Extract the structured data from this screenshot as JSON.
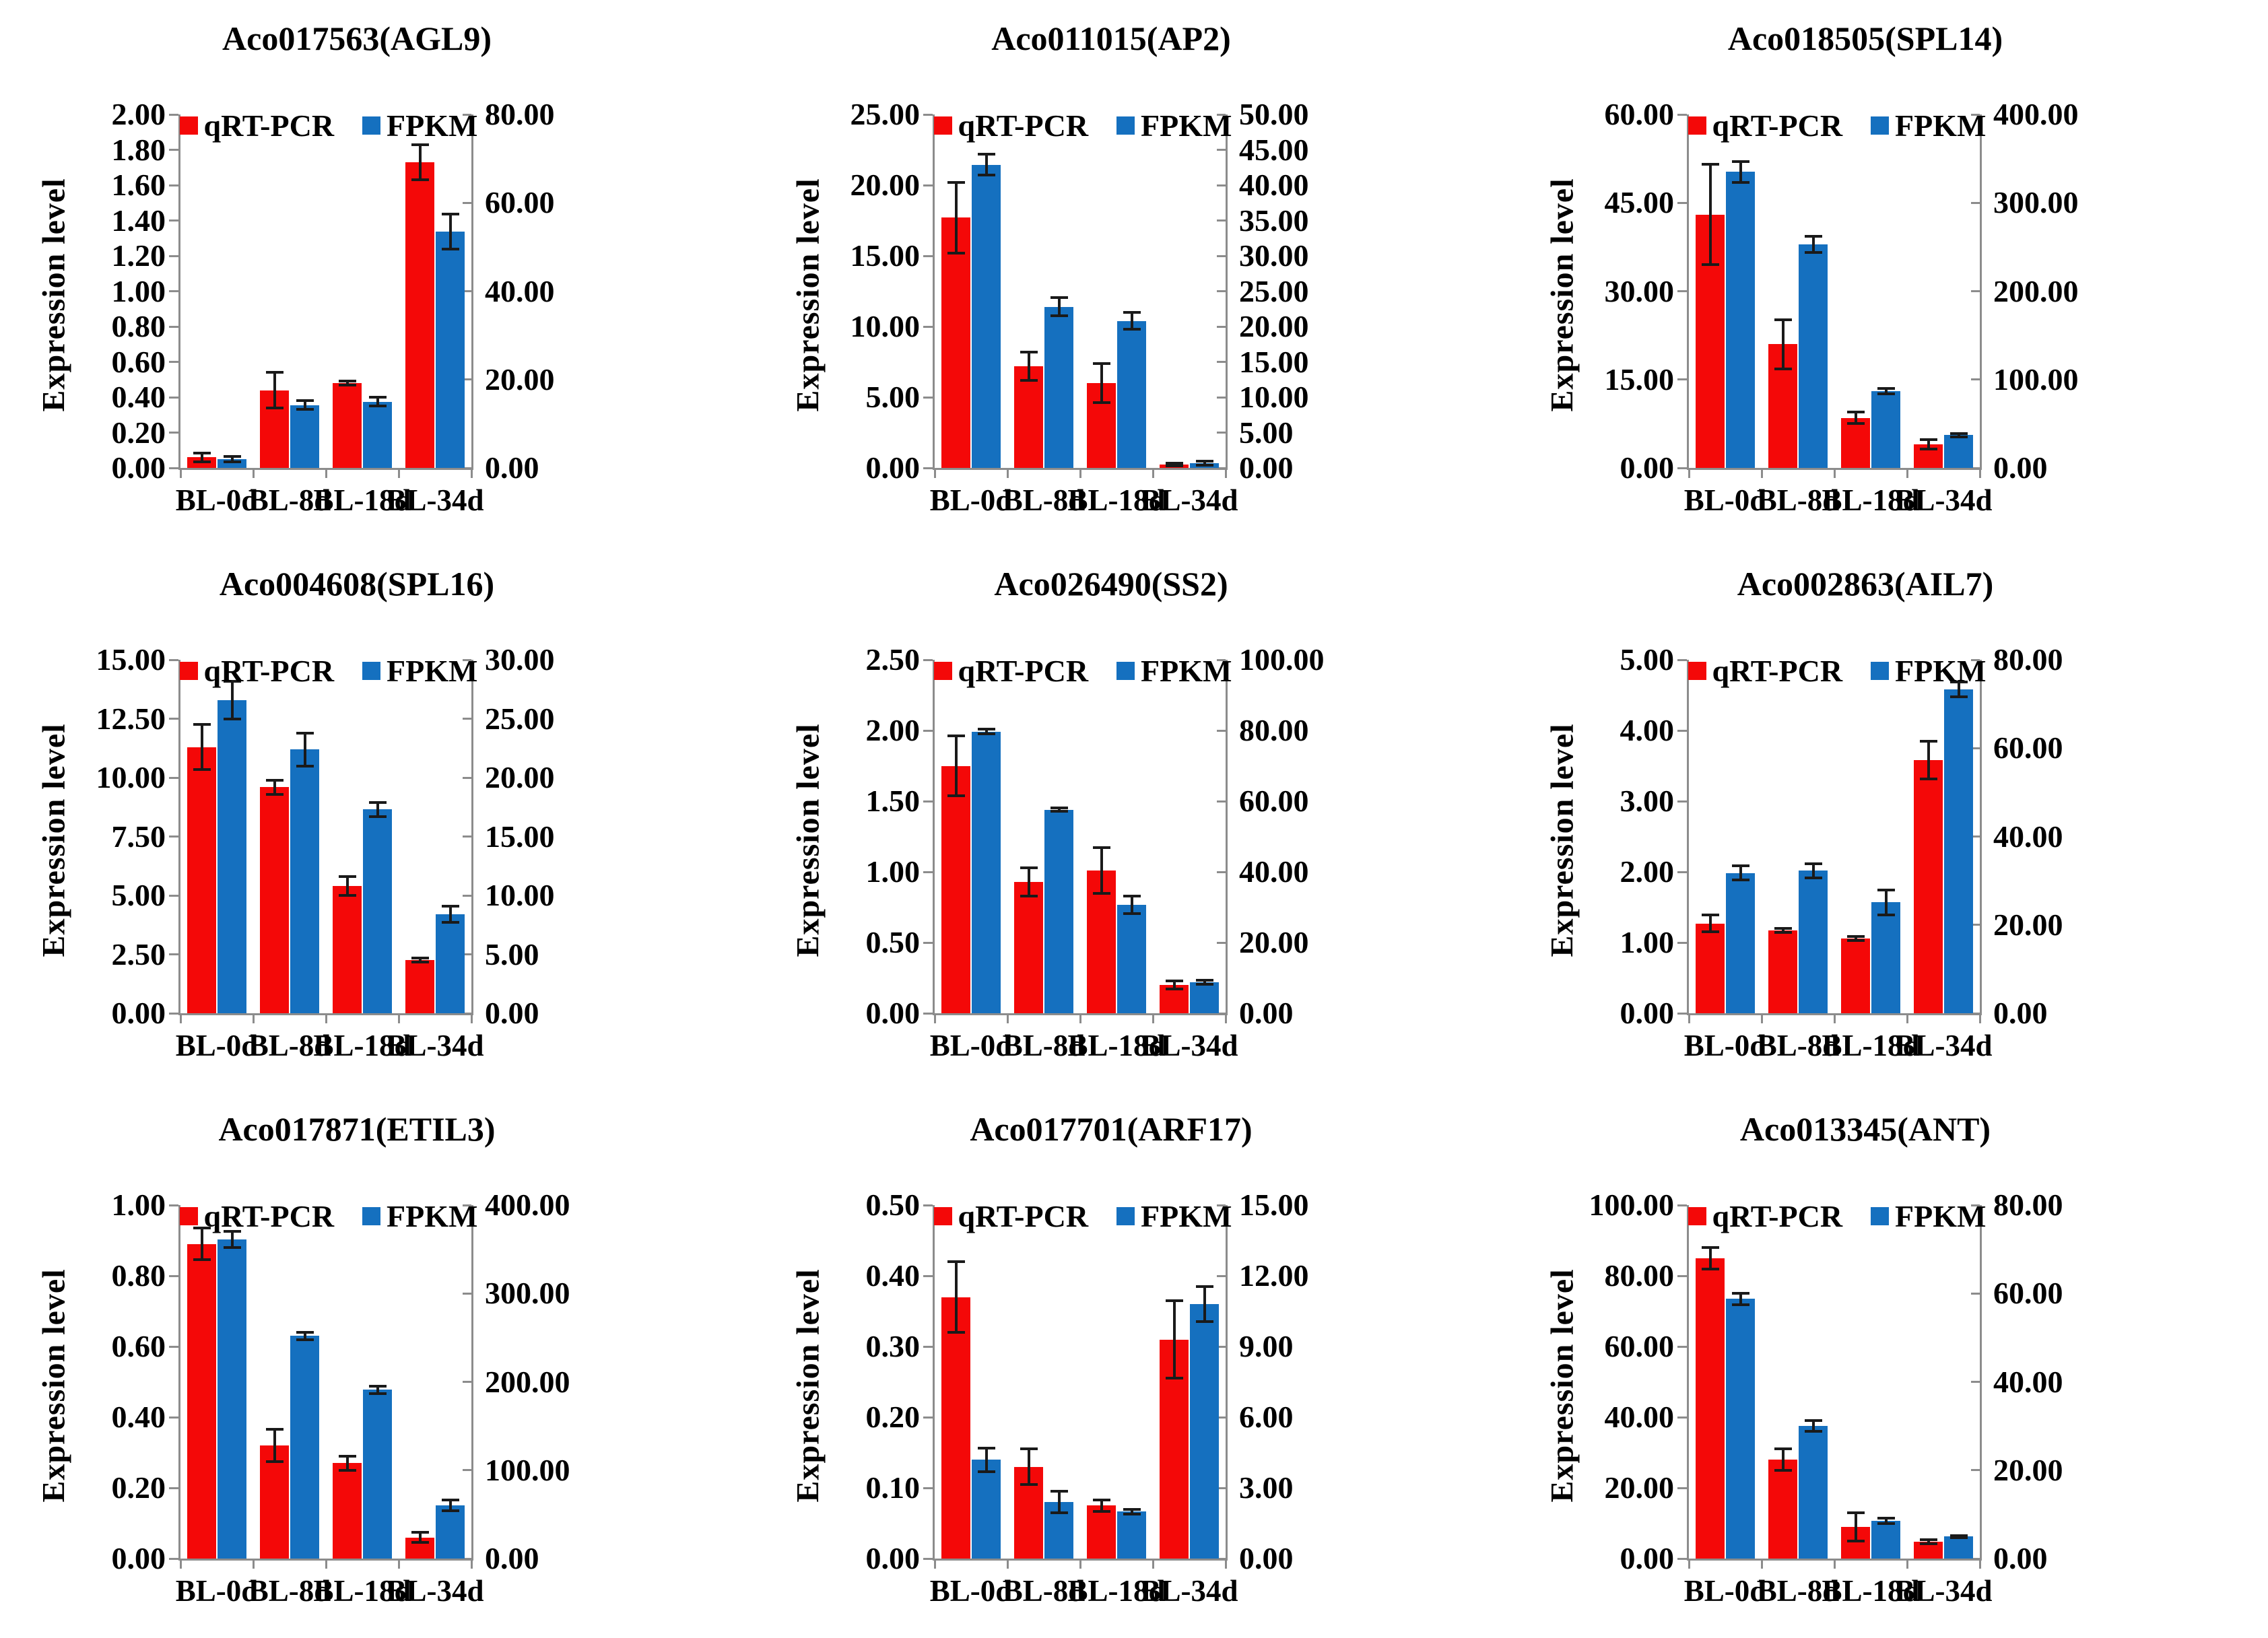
{
  "figure": {
    "layout": "3x3-grid-of-bar-charts",
    "x_axis_categories": [
      "BL-0d",
      "BL-8d",
      "BL-18d",
      "BL-34d"
    ],
    "y_axis_title": "Expression level"
  },
  "legend": {
    "qrt_pcr": "qRT-PCR",
    "fpkm": "FPKM"
  },
  "colors": {
    "qrt_pcr": "#F40808",
    "fpkm": "#1570BF",
    "axis": "#8C8C8C",
    "error_bar": "#1A1A1A",
    "text": "#000000"
  },
  "chart_data": [
    {
      "type": "bar",
      "title": "Aco017563(AGL9)",
      "ylabel": "Expression level",
      "categories": [
        "BL-0d",
        "BL-8d",
        "BL-18d",
        "BL-34d"
      ],
      "left_axis": {
        "max": 2.0,
        "tick_labels": [
          "2.00",
          "1.80",
          "1.60",
          "1.40",
          "1.20",
          "1.00",
          "0.80",
          "0.60",
          "0.40",
          "0.20",
          "0.00"
        ]
      },
      "right_axis": {
        "max": 80.0,
        "tick_labels": [
          "80.00",
          "60.00",
          "40.00",
          "20.00",
          "0.00"
        ]
      },
      "series": [
        {
          "name": "qRT-PCR",
          "axis": "left",
          "values": [
            0.06,
            0.44,
            0.48,
            1.73
          ],
          "errors": [
            0.025,
            0.1,
            0.012,
            0.1
          ]
        },
        {
          "name": "FPKM",
          "axis": "right",
          "values": [
            2.0,
            14.2,
            15.0,
            53.5
          ],
          "errors": [
            0.6,
            1.0,
            1.0,
            4.0
          ]
        }
      ]
    },
    {
      "type": "bar",
      "title": "Aco011015(AP2)",
      "ylabel": "Expression level",
      "categories": [
        "BL-0d",
        "BL-8d",
        "BL-18d",
        "BL-34d"
      ],
      "left_axis": {
        "max": 25.0,
        "tick_labels": [
          "25.00",
          "20.00",
          "15.00",
          "10.00",
          "5.00",
          "0.00"
        ]
      },
      "right_axis": {
        "max": 50.0,
        "tick_labels": [
          "50.00",
          "45.00",
          "40.00",
          "35.00",
          "30.00",
          "25.00",
          "20.00",
          "15.00",
          "10.00",
          "5.00",
          "0.00"
        ]
      },
      "series": [
        {
          "name": "qRT-PCR",
          "axis": "left",
          "values": [
            17.7,
            7.2,
            6.0,
            0.22
          ],
          "errors": [
            2.5,
            1.0,
            1.4,
            0.1
          ]
        },
        {
          "name": "FPKM",
          "axis": "right",
          "values": [
            42.9,
            22.8,
            20.8,
            0.7
          ],
          "errors": [
            1.5,
            1.3,
            1.2,
            0.3
          ]
        }
      ]
    },
    {
      "type": "bar",
      "title": "Aco018505(SPL14)",
      "ylabel": "Expression level",
      "categories": [
        "BL-0d",
        "BL-8d",
        "BL-18d",
        "BL-34d"
      ],
      "left_axis": {
        "max": 60.0,
        "tick_labels": [
          "60.00",
          "45.00",
          "30.00",
          "15.00",
          "0.00"
        ]
      },
      "right_axis": {
        "max": 400.0,
        "tick_labels": [
          "400.00",
          "300.00",
          "200.00",
          "100.00",
          "0.00"
        ]
      },
      "series": [
        {
          "name": "qRT-PCR",
          "axis": "left",
          "values": [
            43.0,
            21.0,
            8.5,
            4.0
          ],
          "errors": [
            8.5,
            4.2,
            1.0,
            0.8
          ]
        },
        {
          "name": "FPKM",
          "axis": "right",
          "values": [
            335.0,
            253.0,
            87.0,
            37.0
          ],
          "errors": [
            12.0,
            9.0,
            3.0,
            2.0
          ]
        }
      ]
    },
    {
      "type": "bar",
      "title": "Aco004608(SPL16)",
      "ylabel": "Expression level",
      "categories": [
        "BL-0d",
        "BL-8d",
        "BL-18d",
        "BL-34d"
      ],
      "left_axis": {
        "max": 15.0,
        "tick_labels": [
          "15.00",
          "12.50",
          "10.00",
          "7.50",
          "5.00",
          "2.50",
          "0.00"
        ]
      },
      "right_axis": {
        "max": 30.0,
        "tick_labels": [
          "30.00",
          "25.00",
          "20.00",
          "15.00",
          "10.00",
          "5.00",
          "0.00"
        ]
      },
      "series": [
        {
          "name": "qRT-PCR",
          "axis": "left",
          "values": [
            11.3,
            9.6,
            5.4,
            2.25
          ],
          "errors": [
            0.95,
            0.3,
            0.4,
            0.08
          ]
        },
        {
          "name": "FPKM",
          "axis": "right",
          "values": [
            26.6,
            22.4,
            17.3,
            8.4
          ],
          "errors": [
            1.6,
            1.4,
            0.6,
            0.7
          ]
        }
      ]
    },
    {
      "type": "bar",
      "title": "Aco026490(SS2)",
      "ylabel": "Expression level",
      "categories": [
        "BL-0d",
        "BL-8d",
        "BL-18d",
        "BL-34d"
      ],
      "left_axis": {
        "max": 2.5,
        "tick_labels": [
          "2.50",
          "2.00",
          "1.50",
          "1.00",
          "0.50",
          "0.00"
        ]
      },
      "right_axis": {
        "max": 100.0,
        "tick_labels": [
          "100.00",
          "80.00",
          "60.00",
          "40.00",
          "20.00",
          "0.00"
        ]
      },
      "series": [
        {
          "name": "qRT-PCR",
          "axis": "left",
          "values": [
            1.75,
            0.93,
            1.01,
            0.2
          ],
          "errors": [
            0.21,
            0.1,
            0.16,
            0.03
          ]
        },
        {
          "name": "FPKM",
          "axis": "right",
          "values": [
            79.7,
            57.6,
            30.7,
            8.8
          ],
          "errors": [
            0.6,
            0.5,
            2.5,
            0.6
          ]
        }
      ]
    },
    {
      "type": "bar",
      "title": "Aco002863(AIL7)",
      "ylabel": "Expression level",
      "categories": [
        "BL-0d",
        "BL-8d",
        "BL-18d",
        "BL-34d"
      ],
      "left_axis": {
        "max": 5.0,
        "tick_labels": [
          "5.00",
          "4.00",
          "3.00",
          "2.00",
          "1.00",
          "0.00"
        ]
      },
      "right_axis": {
        "max": 80.0,
        "tick_labels": [
          "80.00",
          "60.00",
          "40.00",
          "20.00",
          "0.00"
        ]
      },
      "series": [
        {
          "name": "qRT-PCR",
          "axis": "left",
          "values": [
            1.27,
            1.17,
            1.06,
            3.58
          ],
          "errors": [
            0.12,
            0.03,
            0.03,
            0.27
          ]
        },
        {
          "name": "FPKM",
          "axis": "right",
          "values": [
            31.7,
            32.3,
            25.1,
            73.3
          ],
          "errors": [
            1.6,
            1.6,
            2.8,
            1.7
          ]
        }
      ]
    },
    {
      "type": "bar",
      "title": "Aco017871(ETIL3)",
      "ylabel": "Expression level",
      "categories": [
        "BL-0d",
        "BL-8d",
        "BL-18d",
        "BL-34d"
      ],
      "left_axis": {
        "max": 1.0,
        "tick_labels": [
          "1.00",
          "0.80",
          "0.60",
          "0.40",
          "0.20",
          "0.00"
        ]
      },
      "right_axis": {
        "max": 400.0,
        "tick_labels": [
          "400.00",
          "300.00",
          "200.00",
          "100.00",
          "0.00"
        ]
      },
      "series": [
        {
          "name": "qRT-PCR",
          "axis": "left",
          "values": [
            0.89,
            0.32,
            0.27,
            0.06
          ],
          "errors": [
            0.045,
            0.045,
            0.02,
            0.015
          ]
        },
        {
          "name": "FPKM",
          "axis": "right",
          "values": [
            361.0,
            252.0,
            191.0,
            60.0
          ],
          "errors": [
            9.0,
            4.0,
            4.0,
            6.0
          ]
        }
      ]
    },
    {
      "type": "bar",
      "title": "Aco017701(ARF17)",
      "ylabel": "Expression level",
      "categories": [
        "BL-0d",
        "BL-8d",
        "BL-18d",
        "BL-34d"
      ],
      "left_axis": {
        "max": 0.5,
        "tick_labels": [
          "0.50",
          "0.40",
          "0.30",
          "0.20",
          "0.10",
          "0.00"
        ]
      },
      "right_axis": {
        "max": 15.0,
        "tick_labels": [
          "15.00",
          "12.00",
          "9.00",
          "6.00",
          "3.00",
          "0.00"
        ]
      },
      "series": [
        {
          "name": "qRT-PCR",
          "axis": "left",
          "values": [
            0.37,
            0.13,
            0.075,
            0.31
          ],
          "errors": [
            0.05,
            0.025,
            0.008,
            0.055
          ]
        },
        {
          "name": "FPKM",
          "axis": "right",
          "values": [
            4.2,
            2.4,
            2.0,
            10.8
          ],
          "errors": [
            0.5,
            0.45,
            0.1,
            0.75
          ]
        }
      ]
    },
    {
      "type": "bar",
      "title": "Aco013345(ANT)",
      "ylabel": "Expression level",
      "categories": [
        "BL-0d",
        "BL-8d",
        "BL-18d",
        "BL-34d"
      ],
      "left_axis": {
        "max": 100.0,
        "tick_labels": [
          "100.00",
          "80.00",
          "60.00",
          "40.00",
          "20.00",
          "0.00"
        ]
      },
      "right_axis": {
        "max": 80.0,
        "tick_labels": [
          "80.00",
          "60.00",
          "40.00",
          "20.00",
          "0.00"
        ]
      },
      "series": [
        {
          "name": "qRT-PCR",
          "axis": "left",
          "values": [
            85.0,
            28.0,
            9.0,
            4.8
          ],
          "errors": [
            3.0,
            3.0,
            4.0,
            0.6
          ]
        },
        {
          "name": "FPKM",
          "axis": "right",
          "values": [
            58.8,
            30.0,
            8.6,
            5.0
          ],
          "errors": [
            1.3,
            1.2,
            0.6,
            0.2
          ]
        }
      ]
    }
  ]
}
